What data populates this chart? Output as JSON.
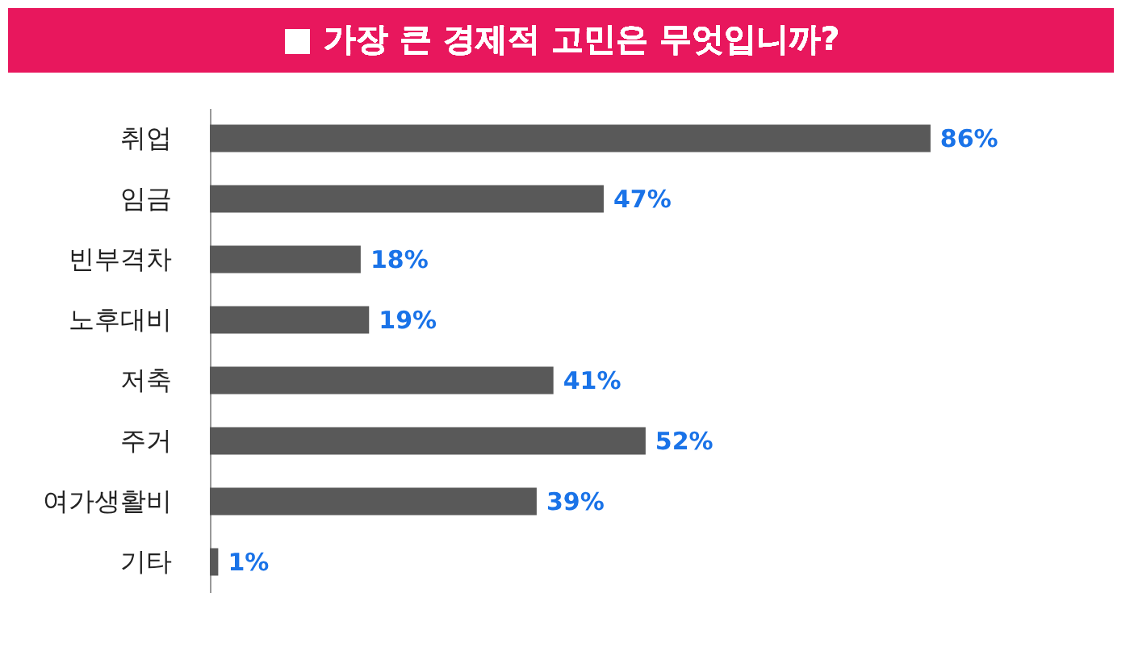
{
  "chart_data": {
    "type": "bar",
    "orientation": "horizontal",
    "title": "■ 가장 큰 경제적 고민은 무엇입니까?",
    "categories": [
      "취업",
      "임금",
      "빈부격차",
      "노후대비",
      "저축",
      "주거",
      "여가생활비",
      "기타"
    ],
    "values": [
      86,
      47,
      18,
      19,
      41,
      52,
      39,
      1
    ],
    "value_labels": [
      "86%",
      "47%",
      "18%",
      "19%",
      "41%",
      "52%",
      "39%",
      "1%"
    ],
    "color": "#595959"
  }
}
